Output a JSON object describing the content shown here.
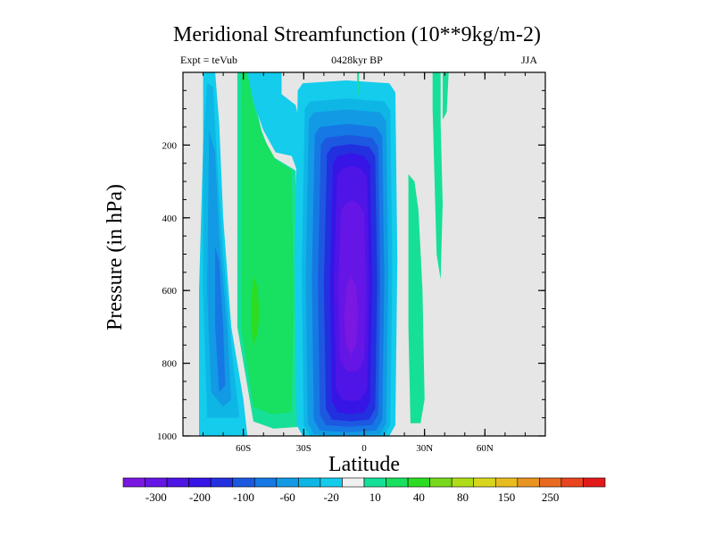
{
  "chart_data": {
    "type": "heatmap",
    "title": "Meridional Streamfunction (10**9kg/m-2)",
    "subtitle_left": "Expt = teVub",
    "subtitle_center": "0428kyr BP",
    "subtitle_right": "JJA",
    "xlabel": "Latitude",
    "ylabel": "Pressure (in hPa)",
    "x_range": [
      -90,
      90
    ],
    "y_range": [
      0,
      1000
    ],
    "y_reversed": true,
    "x_ticks": [
      {
        "value": -60,
        "label": "60S"
      },
      {
        "value": -30,
        "label": "30S"
      },
      {
        "value": 0,
        "label": "0"
      },
      {
        "value": 30,
        "label": "30N"
      },
      {
        "value": 60,
        "label": "60N"
      }
    ],
    "y_ticks": [
      {
        "value": 200,
        "label": "200"
      },
      {
        "value": 400,
        "label": "400"
      },
      {
        "value": 600,
        "label": "600"
      },
      {
        "value": 800,
        "label": "800"
      },
      {
        "value": 1000,
        "label": "1000"
      }
    ],
    "background_color": "#e6e6e6",
    "colorbar": {
      "colors": [
        "#7a17e0",
        "#6515e5",
        "#4f14e6",
        "#3615e6",
        "#2330e0",
        "#1d58e0",
        "#1678e4",
        "#129ae4",
        "#0eb6e6",
        "#14ccec",
        "#f0f0f0",
        "#16e098",
        "#18e060",
        "#2cdc22",
        "#78d81c",
        "#aedc18",
        "#d8d61c",
        "#e8bb1e",
        "#e89420",
        "#e86a20",
        "#e84420",
        "#e31a1a"
      ],
      "labels": [
        "-300",
        "-200",
        "-100",
        "-60",
        "-20",
        "10",
        "40",
        "80",
        "150",
        "250"
      ]
    },
    "fields": [
      {
        "name": "sh-polar-negative-cell",
        "value_range": [
          -60,
          -20
        ],
        "lat_range": [
          -80,
          -58
        ],
        "pressure_range": [
          0,
          1000
        ],
        "color_index": 8
      },
      {
        "name": "sh-mid-latitude-positive-cell",
        "value_range": [
          10,
          80
        ],
        "lat_range": [
          -63,
          -32
        ],
        "pressure_range": [
          0,
          975
        ],
        "color_index": 12
      },
      {
        "name": "hadley-winter-cell",
        "value_range": [
          -300,
          -20
        ],
        "lat_range": [
          -32,
          17
        ],
        "pressure_range": [
          25,
          1000
        ],
        "color_index": 2
      },
      {
        "name": "nh-tropical-positive-cell",
        "value_range": [
          10,
          40
        ],
        "lat_range": [
          22,
          30
        ],
        "pressure_range": [
          280,
          965
        ],
        "color_index": 11
      },
      {
        "name": "nh-upper-positive-tongue",
        "value_range": [
          10,
          40
        ],
        "lat_range": [
          34,
          42
        ],
        "pressure_range": [
          0,
          570
        ],
        "color_index": 11
      }
    ]
  }
}
